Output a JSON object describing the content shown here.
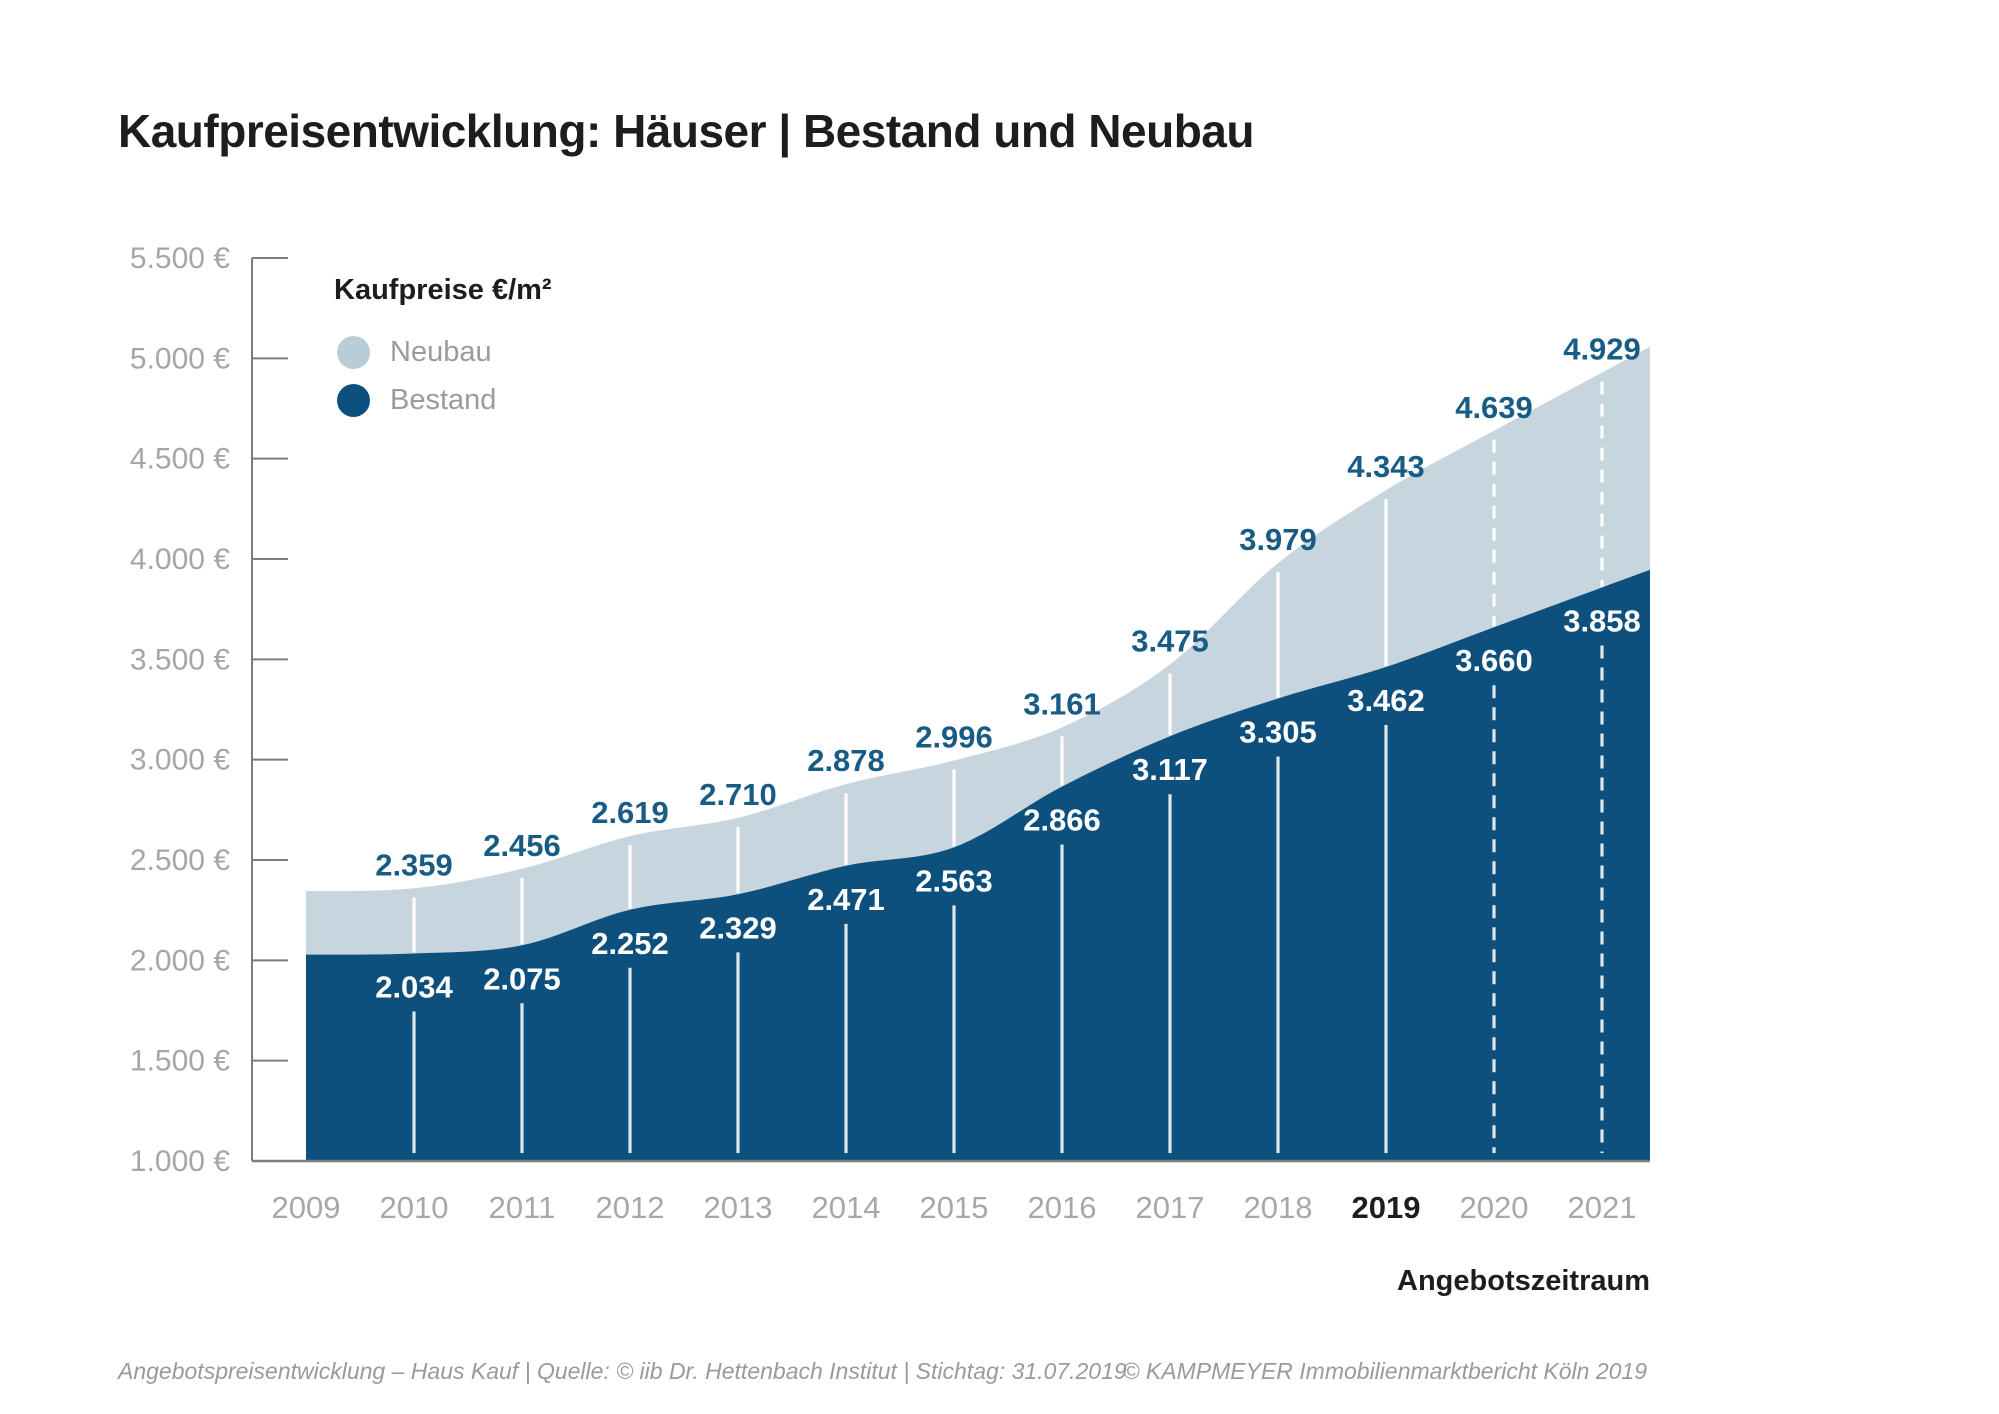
{
  "title": "Kaufpreisentwicklung: Häuser | Bestand und Neubau",
  "legend": {
    "title": "Kaufpreise €/m²",
    "items": [
      {
        "label": "Neubau",
        "color": "#b9cdd9"
      },
      {
        "label": "Bestand",
        "color": "#0d507d"
      }
    ]
  },
  "footer": {
    "left": "Angebotspreisentwicklung – Haus Kauf | Quelle: © iib Dr. Hettenbach Institut | Stichtag: 31.07.2019",
    "right": "© KAMPMEYER Immobilienmarktbericht Köln 2019"
  },
  "chart_data": {
    "type": "area",
    "title": "Kaufpreisentwicklung: Häuser | Bestand und Neubau",
    "unit": "€/m²",
    "x": [
      2009,
      2010,
      2011,
      2012,
      2013,
      2014,
      2015,
      2016,
      2017,
      2018,
      2019,
      2020,
      2021
    ],
    "xlabel": "Angebotszeitraum",
    "ylim": [
      1000,
      5500
    ],
    "ytick_step": 500,
    "ytick_suffix": " €",
    "grid": false,
    "legend_position": "top-left",
    "series": [
      {
        "name": "Neubau",
        "color": "#c7d5de",
        "label_color": "#185c85",
        "values": [
          2345,
          2359,
          2456,
          2619,
          2710,
          2878,
          2996,
          3161,
          3475,
          3979,
          4343,
          4639,
          4929
        ]
      },
      {
        "name": "Bestand",
        "color": "#0d507d",
        "label_color": "#ffffff",
        "values": [
          2028,
          2034,
          2075,
          2252,
          2329,
          2471,
          2563,
          2866,
          3117,
          3305,
          3462,
          3660,
          3858
        ]
      }
    ],
    "first_year_unlabeled": true,
    "bold_year": 2019,
    "forecast_years": [
      2020,
      2021
    ]
  }
}
